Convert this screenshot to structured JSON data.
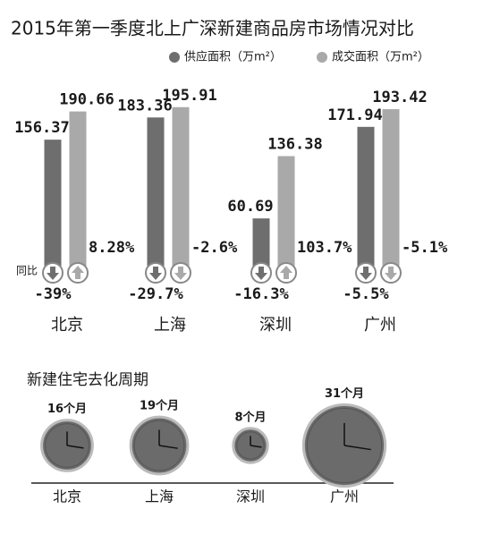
{
  "chart_data": [
    {
      "type": "bar",
      "title": "2015年第一季度北上广深新建商品房市场情况对比",
      "categories": [
        "北京",
        "上海",
        "深圳",
        "广州"
      ],
      "series": [
        {
          "name": "供应面积（万m²）",
          "color": "#6e6e6e",
          "values": [
            156.37,
            183.36,
            60.69,
            171.94
          ],
          "change": [
            -39,
            -29.7,
            -16.3,
            -5.5
          ],
          "change_labels": [
            "-39%",
            "-29.7%",
            "-16.3%",
            "-5.5%"
          ]
        },
        {
          "name": "成交面积（万m²）",
          "color": "#a9a9a9",
          "values": [
            190.66,
            195.91,
            136.38,
            193.42
          ],
          "change": [
            8.28,
            -2.6,
            103.7,
            -5.1
          ],
          "change_labels": [
            "8.28%",
            "-2.6%",
            "103.7%",
            "-5.1%"
          ]
        }
      ],
      "change_title": "同比"
    },
    {
      "type": "clock",
      "title": "新建住宅去化周期",
      "categories": [
        "北京",
        "上海",
        "深圳",
        "广州"
      ],
      "values": [
        16,
        19,
        8,
        31
      ],
      "value_labels": [
        "16个月",
        "19个月",
        "8个月",
        "31个月"
      ],
      "color": "#6b6b6b"
    }
  ]
}
